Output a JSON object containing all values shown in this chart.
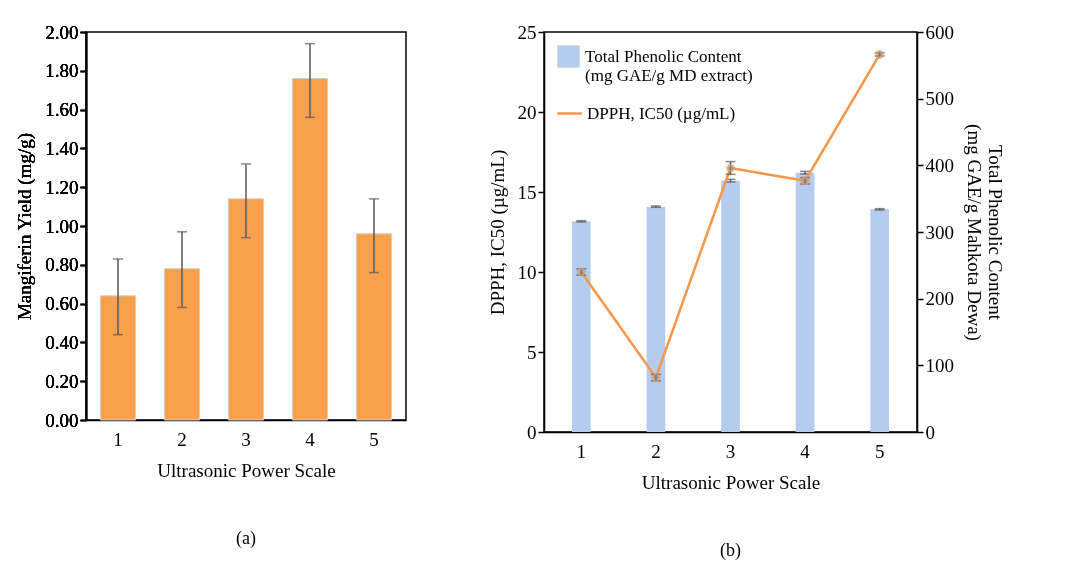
{
  "chart_data": [
    {
      "type": "bar",
      "xlabel": "Ultrasonic Power Scale",
      "ylabel": "Mangiferin Yield (mg/g)",
      "categories": [
        "1",
        "2",
        "3",
        "4",
        "5"
      ],
      "values": [
        0.64,
        0.78,
        1.14,
        1.76,
        0.96
      ],
      "errors": [
        [
          0.44,
          0.83
        ],
        [
          0.58,
          0.97
        ],
        [
          0.94,
          1.32
        ],
        [
          1.56,
          1.94
        ],
        [
          0.76,
          1.14
        ]
      ],
      "color": "#f9a04c",
      "ylim": [
        0,
        2
      ],
      "yticks": [
        {
          "value": 0,
          "label": "0.00"
        },
        {
          "value": 0.2,
          "label": "0.20"
        },
        {
          "value": 0.4,
          "label": "0.40"
        },
        {
          "value": 0.6,
          "label": "0.60"
        },
        {
          "value": 0.8,
          "label": "0.80"
        },
        {
          "value": 1,
          "label": "1.00"
        },
        {
          "value": 1.2,
          "label": "1.20"
        },
        {
          "value": 1.4,
          "label": "1.40"
        },
        {
          "value": 1.6,
          "label": "1.60"
        },
        {
          "value": 1.8,
          "label": "1.80"
        },
        {
          "value": 2,
          "label": "2.00"
        }
      ],
      "annotations": [
        "(a)"
      ]
    },
    {
      "type": "bar",
      "xlabel": "Ultrasonic Power Scale",
      "ylabel": "DPPH, IC50 (µg/mL)",
      "y2label": "Total Phenolic Content (mg GAE/g Mahkota Dewa)",
      "categories": [
        "1",
        "2",
        "3",
        "4",
        "5"
      ],
      "series": [
        {
          "name": "Total Phenolic Content (mg GAE/g MD extract)",
          "type": "bar",
          "axis": "y2",
          "color": "#b4ccee",
          "values": [
            316,
            338,
            377,
            389,
            334
          ],
          "errors": [
            1,
            1,
            2,
            2,
            1
          ]
        },
        {
          "name": "DPPH, IC50 (µg/mL)",
          "type": "line",
          "axis": "y",
          "color": "#f79646",
          "values": [
            10.0,
            3.4,
            16.5,
            15.7,
            23.6
          ],
          "errors": [
            0.2,
            0.2,
            0.4,
            0.2,
            0.1
          ]
        }
      ],
      "marker": "circle",
      "legend": "top left",
      "ylim": [
        0,
        25
      ],
      "yticks": [
        0,
        5,
        10,
        15,
        20,
        25
      ],
      "y2lim": [
        0,
        600
      ],
      "y2ticks": [
        0,
        100,
        200,
        300,
        400,
        500,
        600
      ],
      "annotations": [
        "(b)"
      ]
    }
  ]
}
